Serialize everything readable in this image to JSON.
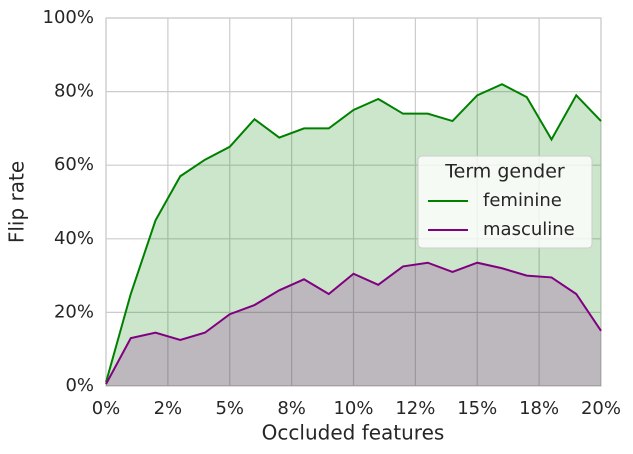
{
  "chart_data": {
    "type": "area-line",
    "xlabel": "Occluded features",
    "ylabel": "Flip rate",
    "x": [
      0,
      1,
      2,
      3,
      4,
      5,
      6,
      7,
      8,
      9,
      10,
      11,
      12,
      13,
      14,
      15,
      16,
      17,
      18,
      19,
      20
    ],
    "series": [
      {
        "name": "feminine",
        "color": "#008000",
        "values": [
          1,
          25,
          45,
          57,
          61.5,
          65,
          72.5,
          67.5,
          70,
          70,
          75,
          78,
          74,
          74,
          72,
          79,
          82,
          78.5,
          67,
          79,
          72
        ]
      },
      {
        "name": "masculine",
        "color": "#800080",
        "values": [
          0.5,
          13,
          14.5,
          12.5,
          14.5,
          19.5,
          22,
          26,
          29,
          25,
          30.5,
          27.5,
          32.5,
          33.5,
          31,
          33.5,
          32,
          30,
          29.5,
          25,
          15
        ]
      }
    ],
    "xlim": [
      0,
      20
    ],
    "xticks": [
      {
        "value": 0,
        "label": "0%"
      },
      {
        "value": 2.5,
        "label": "2%"
      },
      {
        "value": 5,
        "label": "5%"
      },
      {
        "value": 7.5,
        "label": "8%"
      },
      {
        "value": 10,
        "label": "10%"
      },
      {
        "value": 12.5,
        "label": "12%"
      },
      {
        "value": 15,
        "label": "15%"
      },
      {
        "value": 17.5,
        "label": "18%"
      },
      {
        "value": 20,
        "label": "20%"
      }
    ],
    "ylim": [
      0,
      100
    ],
    "yticks": [
      {
        "value": 0,
        "label": "0%"
      },
      {
        "value": 20,
        "label": "20%"
      },
      {
        "value": 40,
        "label": "40%"
      },
      {
        "value": 60,
        "label": "60%"
      },
      {
        "value": 80,
        "label": "80%"
      },
      {
        "value": 100,
        "label": "100%"
      }
    ],
    "grid": true,
    "legend_title": "Term gender",
    "legend_position": "center right"
  }
}
